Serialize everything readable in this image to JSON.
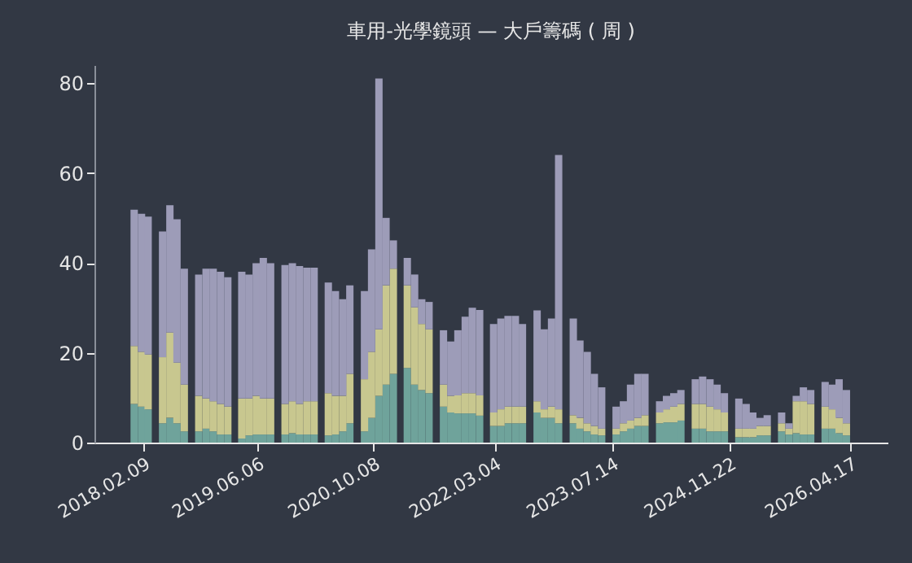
{
  "chart_data": {
    "type": "bar",
    "stacked": true,
    "title": "車用-光學鏡頭 — 大戶籌碼 ( 周 )",
    "x": [
      "2018-01",
      "2018-02",
      "2018-03",
      "2018-04",
      "2018-05",
      "2018-06",
      "2018-07",
      "2018-08",
      "2018-09",
      "2018-10",
      "2018-11",
      "2018-12",
      "2019-01",
      "2019-02",
      "2019-03",
      "2019-04",
      "2019-05",
      "2019-06",
      "2019-07",
      "2019-08",
      "2019-09",
      "2019-10",
      "2019-11",
      "2019-12",
      "2020-01",
      "2020-02",
      "2020-03",
      "2020-04",
      "2020-05",
      "2020-06",
      "2020-07",
      "2020-08",
      "2020-09",
      "2020-10",
      "2020-11",
      "2020-12",
      "2021-01",
      "2021-02",
      "2021-03",
      "2021-04",
      "2021-05",
      "2021-06",
      "2021-07",
      "2021-08",
      "2021-09",
      "2021-10",
      "2021-11",
      "2021-12",
      "2022-01",
      "2022-02",
      "2022-03",
      "2022-04",
      "2022-05",
      "2022-06",
      "2022-07",
      "2022-08",
      "2022-09",
      "2022-10",
      "2022-11",
      "2022-12",
      "2023-01",
      "2023-02",
      "2023-03",
      "2023-04",
      "2023-05",
      "2023-06",
      "2023-07",
      "2023-08",
      "2023-09",
      "2023-10",
      "2023-11",
      "2023-12",
      "2024-01",
      "2024-02",
      "2024-03",
      "2024-04",
      "2024-05",
      "2024-06",
      "2024-07",
      "2024-08",
      "2024-09",
      "2024-10",
      "2024-11",
      "2024-12",
      "2025-01",
      "2025-02",
      "2025-03",
      "2025-04",
      "2025-05",
      "2025-06",
      "2025-07",
      "2025-08",
      "2025-09",
      "2025-10",
      "2025-11",
      "2025-12",
      "2026-01",
      "2026-02",
      "2026-03",
      "2026-04"
    ],
    "series": [
      {
        "color": "#6fa39b",
        "values": [
          8.6,
          8,
          7.4,
          null,
          4.3,
          5.5,
          4.3,
          2.5,
          null,
          2.5,
          3.1,
          2.5,
          1.8,
          1.8,
          null,
          0.9,
          1.6,
          1.8,
          1.8,
          1.8,
          null,
          1.8,
          2.1,
          1.8,
          1.8,
          1.8,
          null,
          1.6,
          1.8,
          2.5,
          4.3,
          null,
          2.5,
          5.5,
          10.4,
          12.9,
          15.3,
          null,
          16.6,
          12.9,
          11.7,
          11,
          null,
          8,
          6.7,
          6.5,
          6.5,
          6.5,
          6,
          null,
          3.7,
          3.7,
          4.3,
          4.3,
          4.3,
          null,
          6.7,
          5.5,
          5.5,
          4.3,
          null,
          4.3,
          3.1,
          2.5,
          1.8,
          1.6,
          null,
          1.8,
          2.5,
          3.1,
          3.7,
          3.7,
          null,
          4.3,
          4.5,
          4.5,
          4.9,
          null,
          3.1,
          3.1,
          2.5,
          2.5,
          2.5,
          null,
          1.2,
          1.2,
          1.2,
          1.6,
          1.6,
          null,
          2.5,
          1.8,
          2.1,
          1.8,
          1.8,
          null,
          3.1,
          3.1,
          2.1,
          1.6
        ]
      },
      {
        "color": "#c8c78f",
        "values": [
          12.9,
          12.2,
          12.2,
          null,
          14.7,
          19,
          13.5,
          10.4,
          null,
          7.9,
          6.7,
          6.7,
          6.8,
          6.2,
          null,
          8.9,
          8.2,
          8.6,
          8,
          8,
          null,
          6.8,
          7.1,
          6.8,
          7.4,
          7.4,
          null,
          9.4,
          8.6,
          7.9,
          11,
          null,
          11.6,
          14.7,
          14.8,
          22.1,
          23.4,
          null,
          18.4,
          17.2,
          14.7,
          14.2,
          null,
          4.9,
          3.7,
          4,
          4.5,
          4.5,
          4.5,
          null,
          3,
          3.7,
          3.7,
          3.7,
          3.7,
          null,
          2.5,
          1.9,
          2.5,
          3.1,
          null,
          1.8,
          2.4,
          1.8,
          1.9,
          1.5,
          null,
          1.3,
          1.8,
          1.8,
          1.8,
          2.4,
          null,
          2.4,
          2.9,
          3.5,
          3.7,
          null,
          5.5,
          5.5,
          5.5,
          4.9,
          4.2,
          null,
          1.9,
          1.9,
          1.9,
          2.1,
          2.1,
          null,
          1.8,
          1.3,
          7.1,
          7.4,
          6.8,
          null,
          4.9,
          4.3,
          3.4,
          2.7
        ]
      },
      {
        "color": "#9d9cb8",
        "values": [
          30.3,
          30.7,
          30.7,
          null,
          28,
          28.3,
          31.9,
          25.8,
          null,
          27,
          28.9,
          29.5,
          29.4,
          28.8,
          null,
          28.2,
          27.6,
          29.5,
          31.3,
          30.1,
          null,
          30.9,
          30.7,
          30.7,
          29.7,
          29.7,
          null,
          24.6,
          23.3,
          21.5,
          19.7,
          null,
          19.6,
          22.8,
          55.8,
          15,
          6.3,
          null,
          6.1,
          7.3,
          5.5,
          6.1,
          null,
          12.1,
          12.1,
          14.5,
          17,
          19,
          19,
          null,
          19.7,
          20.2,
          20.2,
          20.2,
          18.4,
          null,
          20.2,
          17.8,
          19.6,
          56.6,
          null,
          21.5,
          17.2,
          15.9,
          11.6,
          9.2,
          null,
          4.9,
          4.9,
          8,
          9.8,
          9.2,
          null,
          2.5,
          3,
          3,
          3.1,
          null,
          5.5,
          6.1,
          6.1,
          5.5,
          4.3,
          null,
          6.7,
          5.5,
          3.6,
          1.8,
          2.4,
          null,
          2.4,
          1.2,
          1.2,
          3.1,
          3.1,
          null,
          5.5,
          5.5,
          8.6,
          7.4
        ]
      }
    ],
    "xlim": [
      "2017-07-17",
      "2026-09-22"
    ],
    "xticks": [
      {
        "value": "2018-02-09",
        "label": "2018.02.09"
      },
      {
        "value": "2019-06-06",
        "label": "2019.06.06"
      },
      {
        "value": "2020-10-08",
        "label": "2020.10.08"
      },
      {
        "value": "2022-03-04",
        "label": "2022.03.04"
      },
      {
        "value": "2023-07-14",
        "label": "2023.07.14"
      },
      {
        "value": "2024-11-22",
        "label": "2024.11.22"
      },
      {
        "value": "2026-04-17",
        "label": "2026.04.17"
      }
    ],
    "ylim": [
      0,
      84
    ],
    "yticks": [
      0,
      20,
      40,
      60,
      80
    ],
    "grid": false
  }
}
